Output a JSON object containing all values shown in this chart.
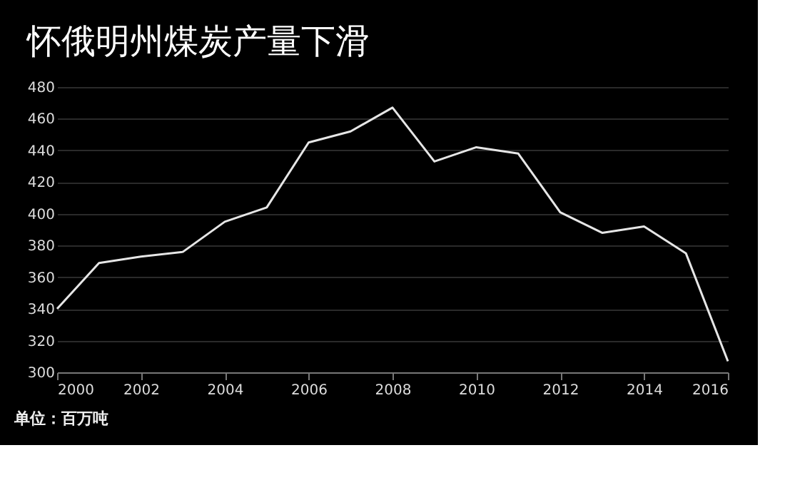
{
  "chart_data": {
    "type": "line",
    "title": "怀俄明州煤炭产量下滑",
    "x": [
      2000,
      2001,
      2002,
      2003,
      2004,
      2005,
      2006,
      2007,
      2008,
      2009,
      2010,
      2011,
      2012,
      2013,
      2014,
      2015,
      2016
    ],
    "series": [
      {
        "color": "#e6e6e6",
        "values": [
          340,
          369,
          373,
          376,
          395,
          404,
          445,
          452,
          467,
          433,
          442,
          438,
          401,
          388,
          392,
          375,
          307
        ]
      }
    ],
    "xlim": [
      2000,
      2016
    ],
    "xticks": [
      2000,
      2002,
      2004,
      2006,
      2008,
      2010,
      2012,
      2014,
      2016
    ],
    "ylim": [
      300,
      480
    ],
    "yticks": [
      300,
      320,
      340,
      360,
      380,
      400,
      420,
      440,
      460,
      480
    ],
    "grid": "y",
    "marker": "none",
    "line_style": "solid",
    "annotations": [
      "单位：百万吨"
    ]
  }
}
